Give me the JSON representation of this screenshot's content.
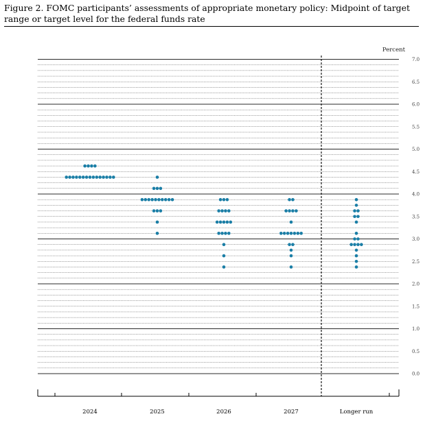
{
  "title": "Figure 2.  FOMC participants’ assessments of appropriate monetary policy: Midpoint of target range or target level for the federal funds rate",
  "colors": {
    "dot": "#1a7ea6",
    "grid": "#333333"
  },
  "chart_data": {
    "type": "scatter",
    "title": "Figure 2.  FOMC participants’ assessments of appropriate monetary policy: Midpoint of target range or target level for the federal funds rate",
    "ylabel": "Percent",
    "ylim": [
      0,
      7
    ],
    "ytick_step": 0.5,
    "ytick_labels": [
      "0.0",
      "0.5",
      "1.0",
      "1.5",
      "2.0",
      "2.5",
      "3.0",
      "3.5",
      "4.0",
      "4.5",
      "5.0",
      "5.5",
      "6.0",
      "6.5",
      "7.0"
    ],
    "grid": true,
    "categories": [
      "2024",
      "2025",
      "2026",
      "2027",
      "Longer run"
    ],
    "points": [
      [
        {
          "y": 4.625,
          "count": 4
        },
        {
          "y": 4.375,
          "count": 15
        }
      ],
      [
        {
          "y": 4.375,
          "count": 1
        },
        {
          "y": 4.125,
          "count": 3
        },
        {
          "y": 3.875,
          "count": 10
        },
        {
          "y": 3.625,
          "count": 3
        },
        {
          "y": 3.375,
          "count": 1
        },
        {
          "y": 3.125,
          "count": 1
        }
      ],
      [
        {
          "y": 3.875,
          "count": 3
        },
        {
          "y": 3.625,
          "count": 4
        },
        {
          "y": 3.375,
          "count": 5
        },
        {
          "y": 3.125,
          "count": 4
        },
        {
          "y": 2.875,
          "count": 1
        },
        {
          "y": 2.625,
          "count": 1
        },
        {
          "y": 2.375,
          "count": 1
        }
      ],
      [
        {
          "y": 3.875,
          "count": 2
        },
        {
          "y": 3.625,
          "count": 4
        },
        {
          "y": 3.375,
          "count": 1
        },
        {
          "y": 3.125,
          "count": 7
        },
        {
          "y": 2.875,
          "count": 2
        },
        {
          "y": 2.75,
          "count": 1
        },
        {
          "y": 2.625,
          "count": 1
        },
        {
          "y": 2.375,
          "count": 1
        }
      ],
      [
        {
          "y": 3.875,
          "count": 1
        },
        {
          "y": 3.75,
          "count": 1
        },
        {
          "y": 3.625,
          "count": 2
        },
        {
          "y": 3.5,
          "count": 2
        },
        {
          "y": 3.375,
          "count": 1
        },
        {
          "y": 3.125,
          "count": 1
        },
        {
          "y": 3.0,
          "count": 2
        },
        {
          "y": 2.875,
          "count": 4
        },
        {
          "y": 2.75,
          "count": 1
        },
        {
          "y": 2.625,
          "count": 1
        },
        {
          "y": 2.5,
          "count": 1
        },
        {
          "y": 2.375,
          "count": 1
        }
      ]
    ]
  }
}
